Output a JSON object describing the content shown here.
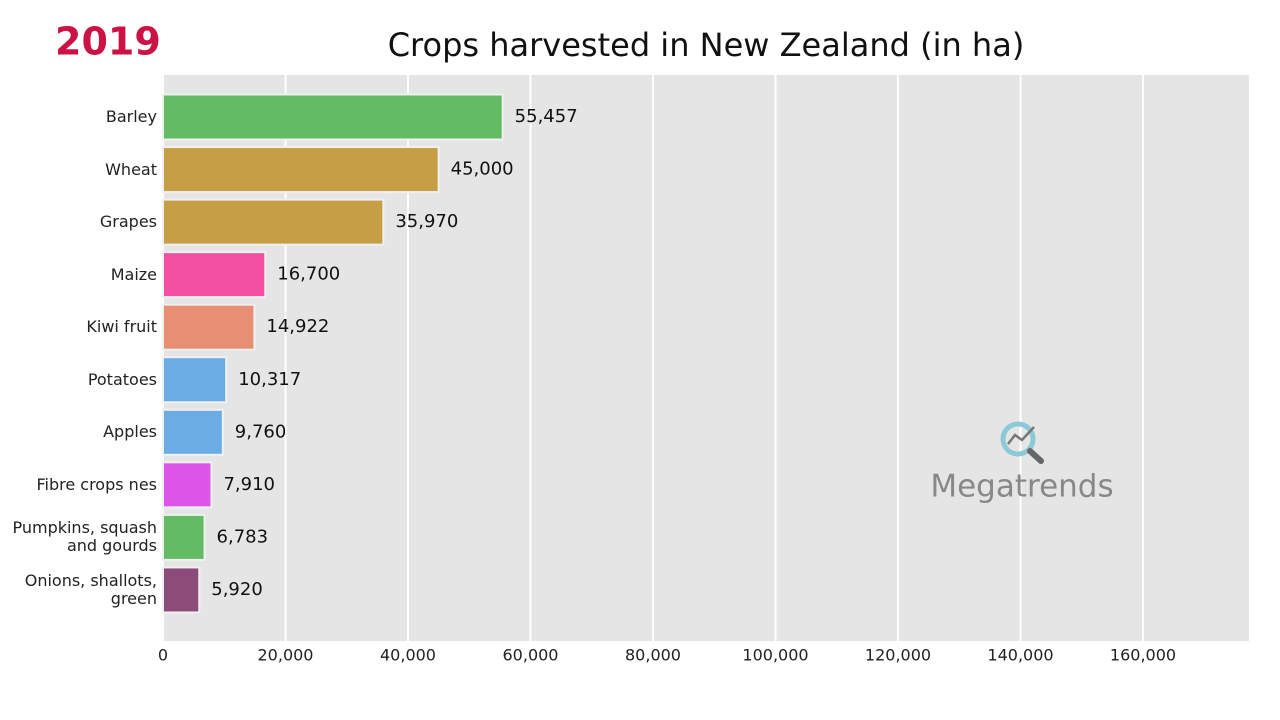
{
  "chart_data": {
    "type": "barh",
    "title": "Crops harvested in New Zealand (in ha)",
    "year": "2019",
    "watermark": "Megatrends",
    "categories": [
      "Barley",
      "Wheat",
      "Grapes",
      "Maize",
      "Kiwi fruit",
      "Potatoes",
      "Apples",
      "Fibre crops nes",
      "Pumpkins, squash\nand gourds",
      "Onions, shallots,\ngreen"
    ],
    "values": [
      55457,
      45000,
      35970,
      16700,
      14922,
      10317,
      9760,
      7910,
      6783,
      5920
    ],
    "value_labels": [
      "55,457",
      "45,000",
      "35,970",
      "16,700",
      "14,922",
      "10,317",
      "9,760",
      "7,910",
      "6,783",
      "5,920"
    ],
    "colors": [
      "#5cb85c",
      "#c49a3c",
      "#c49a3c",
      "#f2479e",
      "#e8896b",
      "#64a9e4",
      "#64a9e4",
      "#da4ee8",
      "#5cb85c",
      "#864373"
    ],
    "xlim": [
      0,
      177300
    ],
    "xticks": [
      0,
      {
        "value": 20000,
        "label": "20,000"
      },
      {
        "value": 40000,
        "label": "40,000"
      },
      {
        "value": 60000,
        "label": "60,000"
      },
      {
        "value": 80000,
        "label": "80,000"
      },
      {
        "value": 100000,
        "label": "100,000"
      },
      {
        "value": 120000,
        "label": "120,000"
      },
      {
        "value": 140000,
        "label": "140,000"
      },
      {
        "value": 160000,
        "label": "160,000"
      }
    ],
    "grid": true
  }
}
